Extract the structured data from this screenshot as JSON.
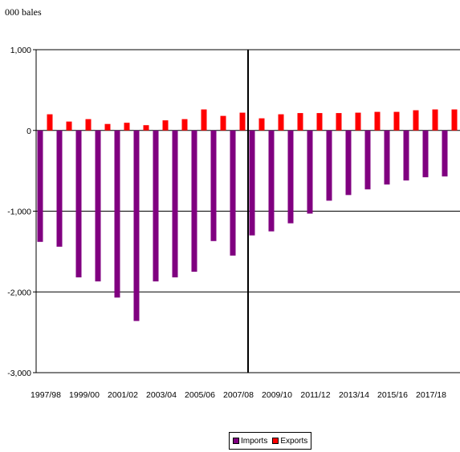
{
  "chart_data": {
    "type": "bar",
    "unit_label": "000 bales",
    "categories": [
      "1997/98",
      "1998/99",
      "1999/00",
      "2000/01",
      "2001/02",
      "2002/03",
      "2003/04",
      "2004/05",
      "2005/06",
      "2006/07",
      "2007/08",
      "2008/09",
      "2009/10",
      "2010/11",
      "2011/12",
      "2012/13",
      "2013/14",
      "2014/15",
      "2015/16",
      "2016/17",
      "2017/18",
      "2018/19"
    ],
    "x_tick_labels": [
      "1997/98",
      "1999/00",
      "2001/02",
      "2003/04",
      "2005/06",
      "2007/08",
      "2009/10",
      "2011/12",
      "2013/14",
      "2015/16",
      "2017/18"
    ],
    "series": [
      {
        "name": "Imports",
        "color": "#800080",
        "values": [
          -1380,
          -1440,
          -1820,
          -1870,
          -2070,
          -2360,
          -1870,
          -1820,
          -1750,
          -1370,
          -1550,
          -1300,
          -1250,
          -1150,
          -1030,
          -870,
          -800,
          -730,
          -670,
          -620,
          -580,
          -570
        ]
      },
      {
        "name": "Exports",
        "color": "#ff0000",
        "values": [
          200,
          110,
          140,
          80,
          95,
          65,
          125,
          140,
          260,
          180,
          220,
          150,
          200,
          215,
          215,
          215,
          220,
          230,
          230,
          250,
          260,
          260
        ]
      }
    ],
    "y_ticks": [
      1000,
      0,
      -1000,
      -2000,
      -3000
    ],
    "y_tick_labels": [
      "1,000",
      "0",
      "-1,000",
      "-2,000",
      "-3,000"
    ],
    "ylim": [
      -3000,
      1000
    ],
    "divider_after_category": "2007/08",
    "grid": true,
    "legend_position": "bottom"
  }
}
